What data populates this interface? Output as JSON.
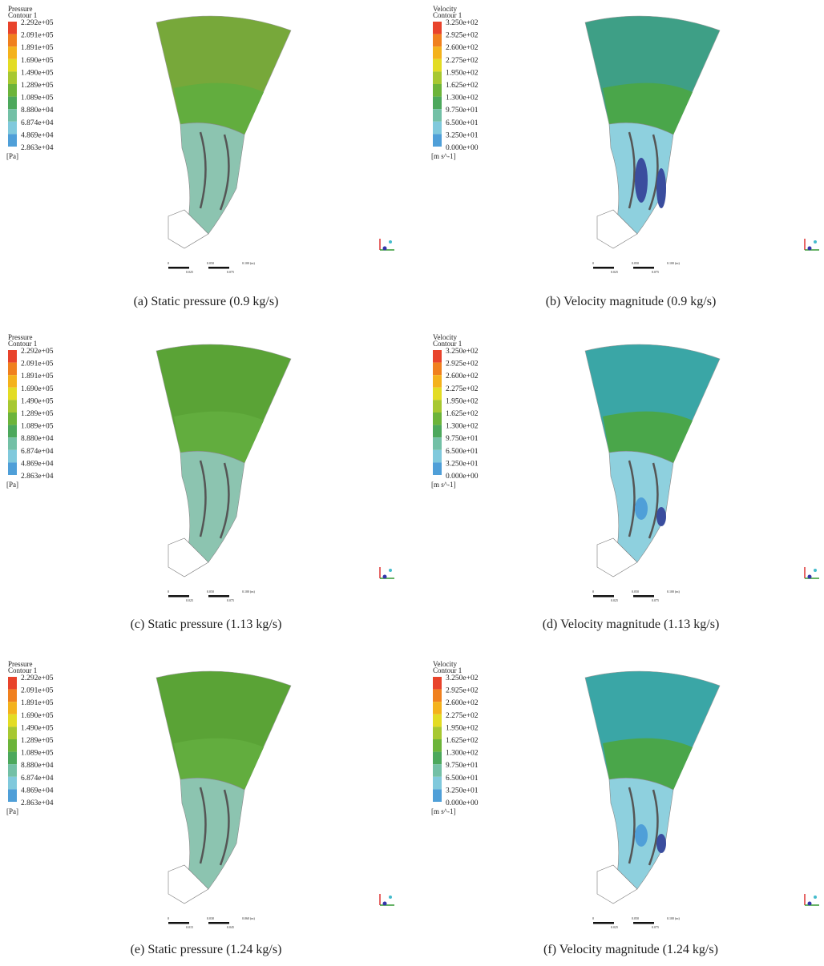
{
  "panels": [
    {
      "legend_title": [
        "Pressure",
        "Contour 1"
      ],
      "legend_labels": [
        "2.292e+05",
        "2.091e+05",
        "1.891e+05",
        "1.690e+05",
        "1.490e+05",
        "1.289e+05",
        "1.089e+05",
        "8.880e+04",
        "6.874e+04",
        "4.869e+04",
        "2.863e+04"
      ],
      "unit": "[Pa]",
      "caption": "(a)  Static pressure (0.9 kg/s)",
      "scale_labels": [
        "0",
        "0.050",
        "0.100 (m)",
        "0.025",
        "0.075"
      ]
    },
    {
      "legend_title": [
        "Velocity",
        "Contour 1"
      ],
      "legend_labels": [
        "3.250e+02",
        "2.925e+02",
        "2.600e+02",
        "2.275e+02",
        "1.950e+02",
        "1.625e+02",
        "1.300e+02",
        "9.750e+01",
        "6.500e+01",
        "3.250e+01",
        "0.000e+00"
      ],
      "unit": "[m s^-1]",
      "caption": "(b)  Velocity magnitude (0.9 kg/s)",
      "scale_labels": [
        "0",
        "0.050",
        "0.100 (m)",
        "0.025",
        "0.075"
      ]
    },
    {
      "legend_title": [
        "Pressure",
        "Contour 1"
      ],
      "legend_labels": [
        "2.292e+05",
        "2.091e+05",
        "1.891e+05",
        "1.690e+05",
        "1.490e+05",
        "1.289e+05",
        "1.089e+05",
        "8.880e+04",
        "6.874e+04",
        "4.869e+04",
        "2.863e+04"
      ],
      "unit": "[Pa]",
      "caption": "(c)  Static pressure (1.13 kg/s)",
      "scale_labels": [
        "0",
        "0.050",
        "0.100 (m)",
        "0.025",
        "0.075"
      ]
    },
    {
      "legend_title": [
        "Velocity",
        "Contour 1"
      ],
      "legend_labels": [
        "3.250e+02",
        "2.925e+02",
        "2.600e+02",
        "2.275e+02",
        "1.950e+02",
        "1.625e+02",
        "1.300e+02",
        "9.750e+01",
        "6.500e+01",
        "3.250e+01",
        "0.000e+00"
      ],
      "unit": "[m s^-1]",
      "caption": "(d)  Velocity magnitude (1.13 kg/s)",
      "scale_labels": [
        "0",
        "0.050",
        "0.100 (m)",
        "0.025",
        "0.075"
      ]
    },
    {
      "legend_title": [
        "Pressure",
        "Contour 1"
      ],
      "legend_labels": [
        "2.292e+05",
        "2.091e+05",
        "1.891e+05",
        "1.690e+05",
        "1.490e+05",
        "1.289e+05",
        "1.089e+05",
        "8.880e+04",
        "6.874e+04",
        "4.869e+04",
        "2.863e+04"
      ],
      "unit": "[Pa]",
      "caption": "(e)  Static pressure (1.24 kg/s)",
      "scale_labels": [
        "0",
        "0.030",
        "0.060 (m)",
        "0.015",
        "0.045"
      ]
    },
    {
      "legend_title": [
        "Velocity",
        "Contour 1"
      ],
      "legend_labels": [
        "3.250e+02",
        "2.925e+02",
        "2.600e+02",
        "2.275e+02",
        "1.950e+02",
        "1.625e+02",
        "1.300e+02",
        "9.750e+01",
        "6.500e+01",
        "3.250e+01",
        "0.000e+00"
      ],
      "unit": "[m s^-1]",
      "caption": "(f)  Velocity magnitude (1.24 kg/s)",
      "scale_labels": [
        "0",
        "0.050",
        "0.100 (m)",
        "0.025",
        "0.075"
      ]
    }
  ]
}
